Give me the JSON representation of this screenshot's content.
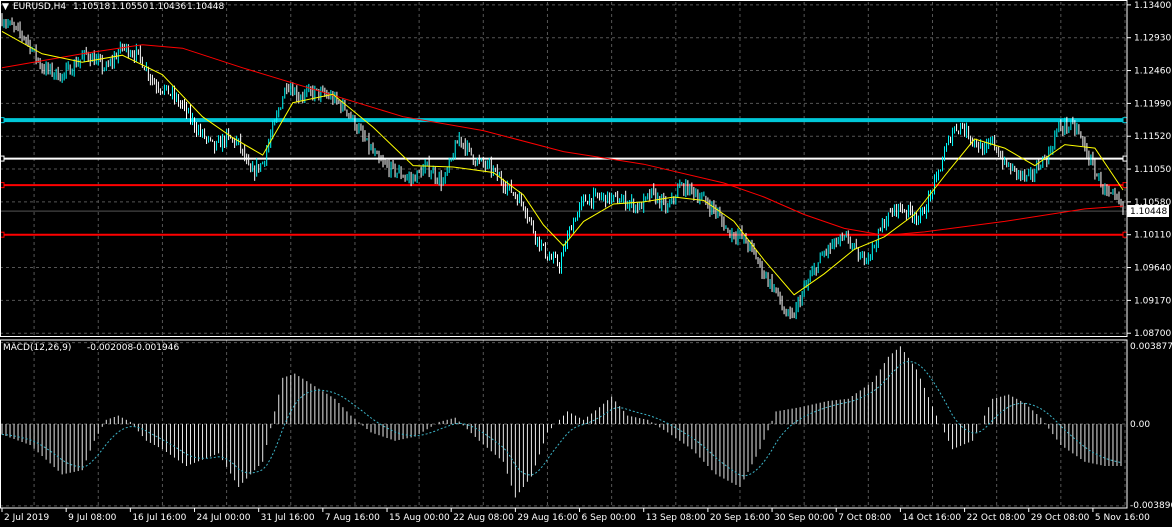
{
  "chart_data": [
    {
      "type": "candlestick",
      "symbol": "EURUSD,H4",
      "ohlc_header": [
        "1.10518",
        "1.10550",
        "1.10436",
        "1.10448"
      ],
      "y_ticks": [
        "1.13400",
        "1.12930",
        "1.12460",
        "1.11990",
        "1.11520",
        "1.11050",
        "1.10580",
        "1.10110",
        "1.09640",
        "1.09170",
        "1.08700"
      ],
      "ylim": [
        1.0866,
        1.1347
      ],
      "current_price": "1.10448",
      "horizontal_levels": [
        {
          "price": 1.1175,
          "color": "#00c8d8"
        },
        {
          "price": 1.112,
          "color": "#ffffff"
        },
        {
          "price": 1.1082,
          "color": "#ff0000"
        },
        {
          "price": 1.1011,
          "color": "#ff0000"
        }
      ],
      "close_path": [
        [
          0,
          1.132
        ],
        [
          12,
          1.1292
        ],
        [
          20,
          1.125
        ],
        [
          30,
          1.1238
        ],
        [
          42,
          1.127
        ],
        [
          52,
          1.1248
        ],
        [
          60,
          1.128
        ],
        [
          68,
          1.1268
        ],
        [
          76,
          1.1228
        ],
        [
          84,
          1.1213
        ],
        [
          90,
          1.1195
        ],
        [
          98,
          1.116
        ],
        [
          106,
          1.1135
        ],
        [
          112,
          1.115
        ],
        [
          118,
          1.1142
        ],
        [
          124,
          1.1098
        ],
        [
          130,
          1.1114
        ],
        [
          136,
          1.117
        ],
        [
          142,
          1.1228
        ],
        [
          148,
          1.121
        ],
        [
          156,
          1.1215
        ],
        [
          164,
          1.1208
        ],
        [
          172,
          1.119
        ],
        [
          180,
          1.115
        ],
        [
          188,
          1.1115
        ],
        [
          196,
          1.1102
        ],
        [
          204,
          1.109
        ],
        [
          212,
          1.1108
        ],
        [
          220,
          1.1085
        ],
        [
          228,
          1.115
        ],
        [
          236,
          1.1118
        ],
        [
          244,
          1.1105
        ],
        [
          252,
          1.108
        ],
        [
          260,
          1.1055
        ],
        [
          266,
          1.101
        ],
        [
          272,
          1.098
        ],
        [
          278,
          1.0968
        ],
        [
          284,
          1.1025
        ],
        [
          290,
          1.106
        ],
        [
          298,
          1.1065
        ],
        [
          306,
          1.1062
        ],
        [
          312,
          1.1058
        ],
        [
          318,
          1.105
        ],
        [
          324,
          1.107
        ],
        [
          332,
          1.1048
        ],
        [
          338,
          1.108
        ],
        [
          344,
          1.1075
        ],
        [
          350,
          1.106
        ],
        [
          356,
          1.1045
        ],
        [
          362,
          1.1015
        ],
        [
          368,
          1.101
        ],
        [
          374,
          1.099
        ],
        [
          380,
          1.0955
        ],
        [
          386,
          1.093
        ],
        [
          390,
          1.09
        ],
        [
          394,
          1.089
        ],
        [
          398,
          1.092
        ],
        [
          404,
          1.0955
        ],
        [
          410,
          1.0985
        ],
        [
          416,
          1.1
        ],
        [
          422,
          1.1005
        ],
        [
          428,
          1.0975
        ],
        [
          434,
          1.099
        ],
        [
          440,
          1.103
        ],
        [
          446,
          1.105
        ],
        [
          452,
          1.1045
        ],
        [
          458,
          1.1035
        ],
        [
          462,
          1.106
        ],
        [
          466,
          1.109
        ],
        [
          470,
          1.1128
        ],
        [
          474,
          1.116
        ],
        [
          478,
          1.1168
        ],
        [
          484,
          1.1148
        ],
        [
          490,
          1.113
        ],
        [
          494,
          1.1145
        ],
        [
          500,
          1.1112
        ],
        [
          506,
          1.11
        ],
        [
          512,
          1.109
        ],
        [
          518,
          1.1115
        ],
        [
          522,
          1.1125
        ],
        [
          526,
          1.116
        ],
        [
          530,
          1.1168
        ],
        [
          536,
          1.1162
        ],
        [
          540,
          1.1135
        ],
        [
          544,
          1.1108
        ],
        [
          548,
          1.1085
        ],
        [
          552,
          1.1065
        ],
        [
          556,
          1.106
        ],
        [
          559,
          1.1045
        ]
      ],
      "ma_slow_path": [
        [
          0,
          1.125
        ],
        [
          40,
          1.127
        ],
        [
          70,
          1.1283
        ],
        [
          90,
          1.1278
        ],
        [
          120,
          1.125
        ],
        [
          160,
          1.1215
        ],
        [
          200,
          1.118
        ],
        [
          240,
          1.116
        ],
        [
          280,
          1.113
        ],
        [
          320,
          1.1112
        ],
        [
          360,
          1.1085
        ],
        [
          380,
          1.1065
        ],
        [
          400,
          1.104
        ],
        [
          420,
          1.102
        ],
        [
          440,
          1.101
        ],
        [
          460,
          1.1015
        ],
        [
          500,
          1.103
        ],
        [
          540,
          1.1048
        ],
        [
          559,
          1.1052
        ]
      ],
      "ma_fast_path": [
        [
          0,
          1.1302
        ],
        [
          20,
          1.127
        ],
        [
          40,
          1.1258
        ],
        [
          60,
          1.1268
        ],
        [
          80,
          1.124
        ],
        [
          100,
          1.118
        ],
        [
          115,
          1.115
        ],
        [
          130,
          1.1125
        ],
        [
          145,
          1.12
        ],
        [
          165,
          1.1212
        ],
        [
          185,
          1.1165
        ],
        [
          205,
          1.111
        ],
        [
          225,
          1.1108
        ],
        [
          245,
          1.11
        ],
        [
          260,
          1.1068
        ],
        [
          270,
          1.1025
        ],
        [
          280,
          1.0995
        ],
        [
          290,
          1.103
        ],
        [
          305,
          1.1055
        ],
        [
          320,
          1.1058
        ],
        [
          335,
          1.1065
        ],
        [
          350,
          1.106
        ],
        [
          365,
          1.103
        ],
        [
          380,
          1.0975
        ],
        [
          395,
          1.0925
        ],
        [
          410,
          1.0955
        ],
        [
          425,
          1.099
        ],
        [
          440,
          1.1008
        ],
        [
          455,
          1.104
        ],
        [
          470,
          1.1095
        ],
        [
          485,
          1.1148
        ],
        [
          500,
          1.1135
        ],
        [
          515,
          1.111
        ],
        [
          530,
          1.114
        ],
        [
          545,
          1.1135
        ],
        [
          559,
          1.1075
        ]
      ],
      "x_labels": [
        "2 Jul 2019",
        "9 Jul 08:00",
        "16 Jul 16:00",
        "24 Jul 00:00",
        "31 Jul 16:00",
        "7 Aug 16:00",
        "15 Aug 00:00",
        "22 Aug 08:00",
        "29 Aug 16:00",
        "6 Sep 00:00",
        "13 Sep 08:00",
        "20 Sep 16:00",
        "30 Sep 00:00",
        "7 Oct 08:00",
        "14 Oct 16:00",
        "22 Oct 08:00",
        "29 Oct 08:00",
        "5 Nov 16:00"
      ],
      "x_label_index": [
        0,
        32,
        64,
        96,
        128,
        160,
        192,
        224,
        256,
        288,
        320,
        352,
        384,
        416,
        448,
        480,
        512,
        544
      ],
      "bars_count": 560,
      "colors": {
        "bull": "#00ffff",
        "bear": "#ffffff",
        "ma_fast": "#ffff00",
        "ma_slow": "#ff0000",
        "grid": "#555555",
        "frame": "#ffffff"
      }
    },
    {
      "type": "histogram",
      "indicator": "MACD(12,26,9)",
      "values_header": [
        "-0.002008",
        "-0.001946"
      ],
      "y_ticks": [
        "0.003877",
        "0.00",
        "-0.003896"
      ],
      "ylim": [
        -0.004,
        0.004
      ],
      "macd_path": [
        [
          0,
          -0.0005
        ],
        [
          14,
          -0.001
        ],
        [
          30,
          -0.0024
        ],
        [
          40,
          -0.0022
        ],
        [
          46,
          -0.0008
        ],
        [
          52,
          0.0002
        ],
        [
          58,
          0.0004
        ],
        [
          64,
          0.0001
        ],
        [
          72,
          -0.0008
        ],
        [
          80,
          -0.0012
        ],
        [
          92,
          -0.002
        ],
        [
          108,
          -0.0014
        ],
        [
          118,
          -0.003
        ],
        [
          130,
          -0.0018
        ],
        [
          140,
          0.0022
        ],
        [
          146,
          0.0024
        ],
        [
          156,
          0.0018
        ],
        [
          166,
          0.0012
        ],
        [
          174,
          0.0004
        ],
        [
          184,
          -0.0004
        ],
        [
          196,
          -0.0008
        ],
        [
          206,
          -0.0006
        ],
        [
          218,
          0.0001
        ],
        [
          226,
          0.0003
        ],
        [
          238,
          -0.0008
        ],
        [
          250,
          -0.0018
        ],
        [
          256,
          -0.0035
        ],
        [
          264,
          -0.0025
        ],
        [
          272,
          -0.0004
        ],
        [
          282,
          0.0006
        ],
        [
          290,
          0.0002
        ],
        [
          298,
          0.0008
        ],
        [
          304,
          0.0013
        ],
        [
          312,
          0.0004
        ],
        [
          322,
          0.0002
        ],
        [
          332,
          -0.0004
        ],
        [
          344,
          -0.0012
        ],
        [
          356,
          -0.0024
        ],
        [
          368,
          -0.003
        ],
        [
          378,
          -0.0012
        ],
        [
          386,
          0.0006
        ],
        [
          398,
          0.0008
        ],
        [
          412,
          0.0011
        ],
        [
          422,
          0.0012
        ],
        [
          434,
          0.002
        ],
        [
          442,
          0.0032
        ],
        [
          448,
          0.0037
        ],
        [
          456,
          0.0026
        ],
        [
          466,
          0.0004
        ],
        [
          474,
          -0.0012
        ],
        [
          484,
          -0.0008
        ],
        [
          494,
          0.0012
        ],
        [
          502,
          0.0014
        ],
        [
          510,
          0.001
        ],
        [
          518,
          0.0003
        ],
        [
          528,
          -0.001
        ],
        [
          540,
          -0.0018
        ],
        [
          550,
          -0.002
        ],
        [
          559,
          -0.002
        ]
      ],
      "colors": {
        "hist": "#e8e8e8",
        "signal": "#3cb4c8"
      }
    }
  ]
}
